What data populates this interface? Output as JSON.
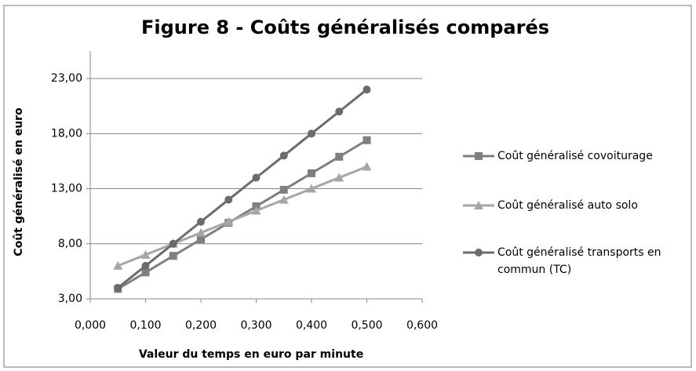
{
  "chart_data": {
    "type": "line",
    "title": "Figure 8 - Coûts généralisés comparés",
    "x_label": "Valeur du temps en euro par minute",
    "y_label": "Coût généralisé en euro",
    "x": [
      0.05,
      0.1,
      0.15,
      0.2,
      0.25,
      0.3,
      0.35,
      0.4,
      0.45,
      0.5
    ],
    "series": [
      {
        "name": "Coût généralisé covoiturage",
        "color": "#7f7f7f",
        "marker": "square",
        "values": [
          3.9,
          5.4,
          6.9,
          8.4,
          9.9,
          11.4,
          12.9,
          14.4,
          15.9,
          17.4
        ]
      },
      {
        "name": "Coût généralisé auto solo",
        "color": "#a6a6a6",
        "marker": "triangle",
        "values": [
          6,
          7,
          8,
          9,
          10,
          11,
          12,
          13,
          14,
          15
        ]
      },
      {
        "name": "Coût généralisé transports en commun (TC)",
        "color": "#6b6b6b",
        "marker": "circle",
        "values": [
          4,
          6,
          8,
          10,
          12,
          14,
          16,
          18,
          20,
          22
        ]
      }
    ],
    "xlim": [
      0,
      0.6
    ],
    "xticks": [
      {
        "value": 0,
        "label": "0,000"
      },
      {
        "value": 0.1,
        "label": "0,100"
      },
      {
        "value": 0.2,
        "label": "0,200"
      },
      {
        "value": 0.3,
        "label": "0,300"
      },
      {
        "value": 0.4,
        "label": "0,400"
      },
      {
        "value": 0.5,
        "label": "0,500"
      },
      {
        "value": 0.6,
        "label": "0,600"
      }
    ],
    "ylim": [
      3,
      25.5
    ],
    "yticks": [
      {
        "value": 3,
        "label": "3,00"
      },
      {
        "value": 8,
        "label": "8,00"
      },
      {
        "value": 13,
        "label": "13,00"
      },
      {
        "value": 18,
        "label": "18,00"
      },
      {
        "value": 23,
        "label": "23,00"
      }
    ],
    "grid": true,
    "legend": "right"
  }
}
